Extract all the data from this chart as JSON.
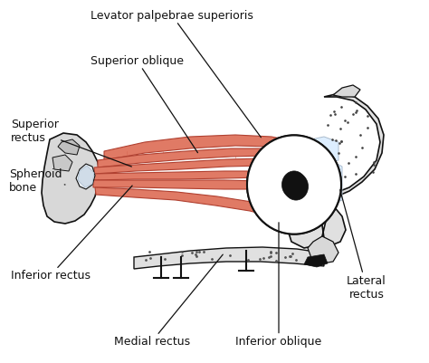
{
  "bg_color": "#ffffff",
  "muscle_color": "#e07a65",
  "muscle_color2": "#d4614d",
  "muscle_edge": "#b04030",
  "outline_color": "#111111",
  "tendon_color": "#c8d8e8",
  "tendon_color2": "#ddeeff",
  "bone_color": "#eeeeee",
  "bone_edge": "#333333",
  "labels": {
    "levator": "Levator palpebrae superioris",
    "sup_oblique": "Superior oblique",
    "sup_rectus": "Superior\nrectus",
    "sphenoid": "Sphenoid\nbone",
    "inf_rectus": "Inferior rectus",
    "medial_rectus": "Medial rectus",
    "inf_oblique": "Inferior oblique",
    "lateral_rectus": "Lateral\nrectus"
  },
  "fontsize": 9
}
